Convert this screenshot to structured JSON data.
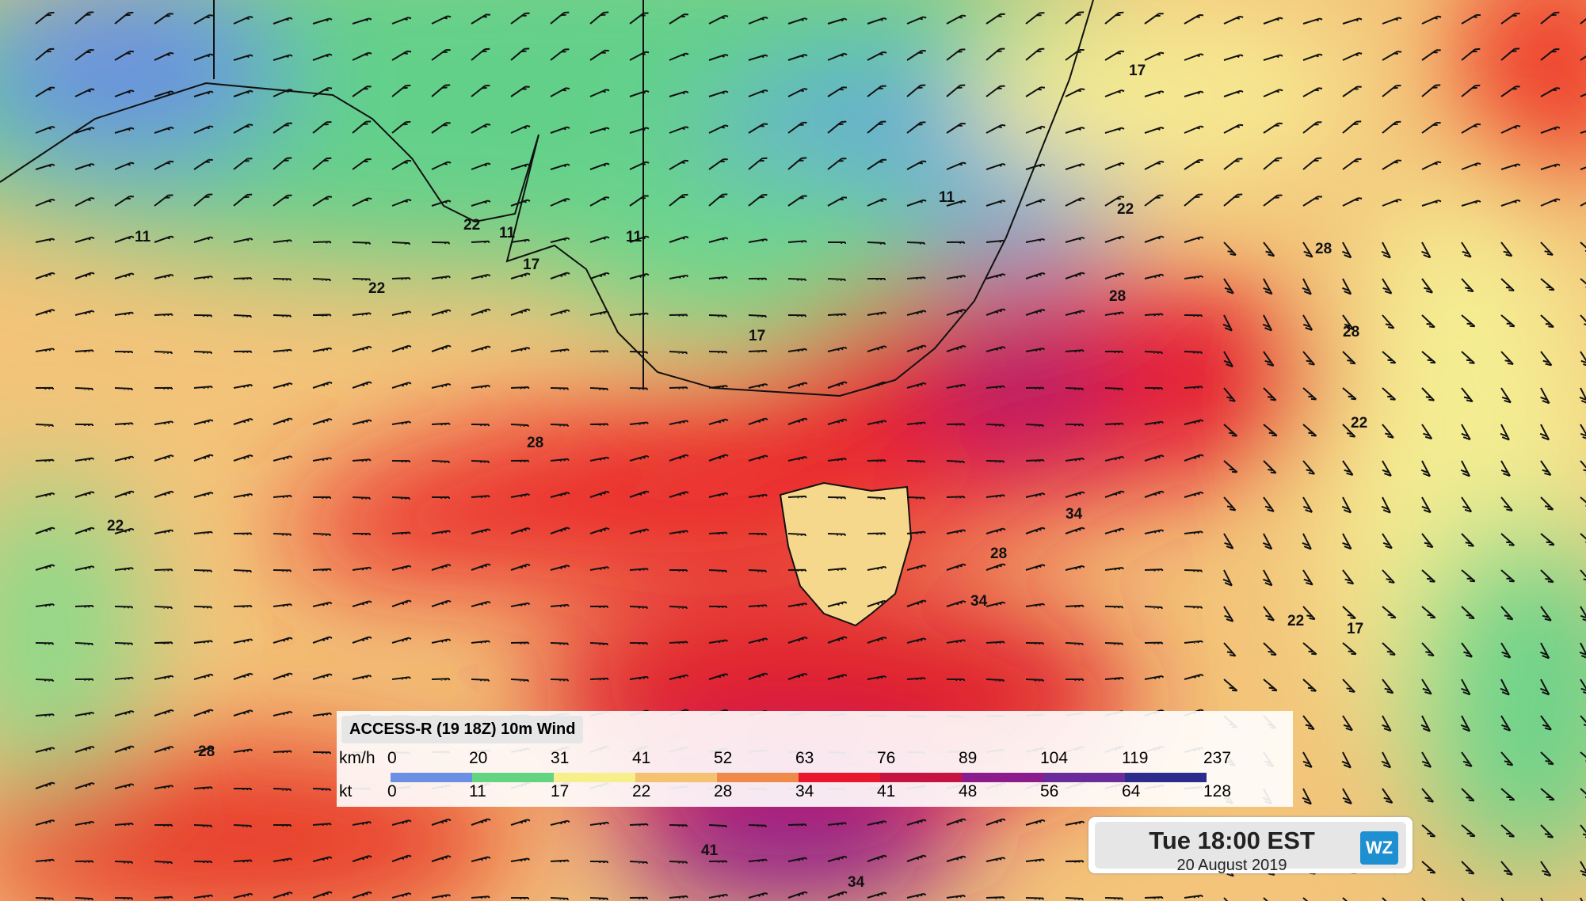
{
  "legend": {
    "title": "ACCESS-R (19 18Z) 10m Wind",
    "units": [
      "km/h",
      "kt"
    ],
    "kmh": [
      0,
      20,
      31,
      41,
      52,
      63,
      76,
      89,
      104,
      119,
      237
    ],
    "kt": [
      0,
      11,
      17,
      22,
      28,
      34,
      41,
      48,
      56,
      64,
      128
    ],
    "colors": [
      "#6b8fe3",
      "#62d482",
      "#f6ef8c",
      "#f4c271",
      "#f08a4b",
      "#e9172b",
      "#c5143f",
      "#8c1b8e",
      "#6a2b9b",
      "#2c2c8c"
    ]
  },
  "timestamp": {
    "time": "Tue 18:00 EST",
    "date": "20 August 2019",
    "logo": "WZ"
  },
  "contour_labels": [
    11,
    11,
    11,
    11,
    17,
    17,
    22,
    22,
    28,
    28,
    28,
    34,
    34,
    28,
    22,
    17,
    22,
    28,
    41,
    34,
    22,
    28,
    17,
    22
  ]
}
